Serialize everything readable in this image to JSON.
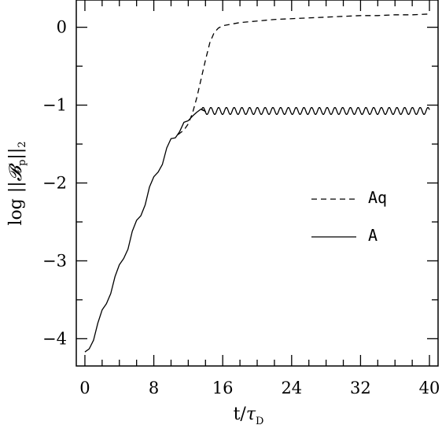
{
  "chart_data": {
    "type": "line",
    "xlabel": "t/τ_D",
    "ylabel": "log ||𝓑_p||_2",
    "xlim": [
      -1,
      41
    ],
    "ylim": [
      -4.35,
      0.35
    ],
    "x_ticks": [
      0,
      8,
      16,
      24,
      32,
      40
    ],
    "x_tick_labels": [
      "0",
      "8",
      "16",
      "24",
      "32",
      "40"
    ],
    "y_ticks": [
      0,
      -1,
      -2,
      -3,
      -4
    ],
    "y_tick_labels": [
      "0",
      "−1",
      "−2",
      "−3",
      "−4"
    ],
    "grid": false,
    "legend_position": "right-middle",
    "series": [
      {
        "name": "Aq",
        "style": "dashed",
        "color": "#000000",
        "x": [
          10.8,
          11.5,
          12.0,
          12.5,
          13.0,
          13.5,
          14.0,
          14.5,
          15.0,
          15.5,
          16.0,
          17.0,
          18.0,
          20.0,
          22.0,
          24.0,
          26.0,
          28.0,
          30.0,
          32.0,
          34.0,
          36.0,
          38.0,
          40.0
        ],
        "y": [
          -1.38,
          -1.32,
          -1.24,
          -1.1,
          -0.9,
          -0.66,
          -0.42,
          -0.2,
          -0.07,
          -0.01,
          0.02,
          0.04,
          0.06,
          0.08,
          0.1,
          0.11,
          0.12,
          0.13,
          0.14,
          0.15,
          0.15,
          0.16,
          0.16,
          0.17
        ]
      },
      {
        "name": "A",
        "style": "solid",
        "color": "#000000",
        "x": [
          0.0,
          0.5,
          1.0,
          1.5,
          2.0,
          2.5,
          3.0,
          3.5,
          4.0,
          4.5,
          5.0,
          5.5,
          6.0,
          6.5,
          7.0,
          7.5,
          8.0,
          8.5,
          9.0,
          9.5,
          10.0,
          10.5,
          11.0,
          11.5,
          12.0,
          12.5,
          13.0,
          13.5,
          14.0
        ],
        "y": [
          -4.17,
          -4.13,
          -4.02,
          -3.8,
          -3.63,
          -3.55,
          -3.42,
          -3.2,
          -3.05,
          -2.97,
          -2.85,
          -2.62,
          -2.48,
          -2.42,
          -2.28,
          -2.05,
          -1.92,
          -1.86,
          -1.76,
          -1.55,
          -1.43,
          -1.42,
          -1.34,
          -1.22,
          -1.2,
          -1.14,
          -1.09,
          -1.05,
          -1.08
        ],
        "oscillation": {
          "from_x": 13.5,
          "to_x": 40.0,
          "mean": -1.075,
          "amplitude": 0.045,
          "period": 0.9
        }
      }
    ]
  }
}
